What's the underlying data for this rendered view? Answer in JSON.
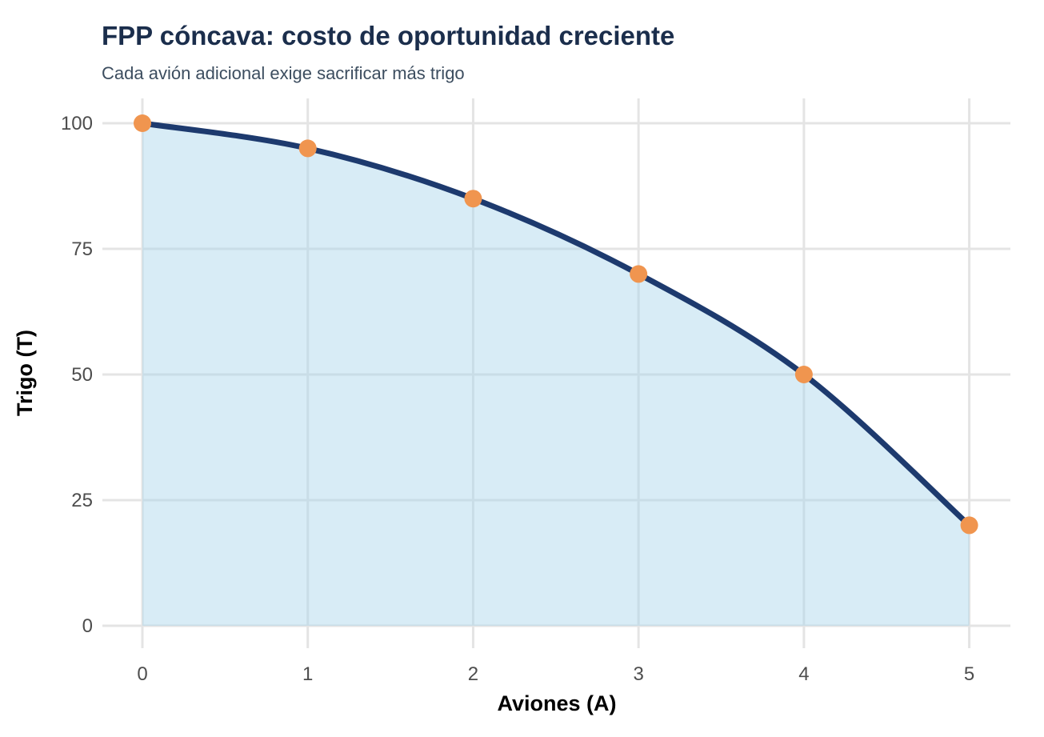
{
  "chart_data": {
    "type": "line",
    "title": "FPP cóncava: costo de oportunidad creciente",
    "subtitle": "Cada avión adicional exige sacrificar más trigo",
    "xlabel": "Aviones (A)",
    "ylabel": "Trigo (T)",
    "x": [
      0,
      1,
      2,
      3,
      4,
      5
    ],
    "y": [
      100,
      95,
      85,
      70,
      50,
      20
    ],
    "x_ticks": [
      0,
      1,
      2,
      3,
      4,
      5
    ],
    "y_ticks": [
      0,
      25,
      50,
      75,
      100
    ],
    "xlim": [
      -0.25,
      5.25
    ],
    "ylim": [
      -5,
      105
    ],
    "grid": true,
    "legend_position": "none",
    "colors": {
      "curve": "#1d3a6e",
      "points": "#f0954f",
      "area_fill": "#a9d4ec",
      "area_opacity": "0.45",
      "gridline": "#e4e4e4",
      "title": "#1b2e4c",
      "subtitle": "#3c4d5f",
      "tick_label": "#4d4d4d",
      "axis_title": "#000000",
      "background": "#ffffff"
    }
  }
}
